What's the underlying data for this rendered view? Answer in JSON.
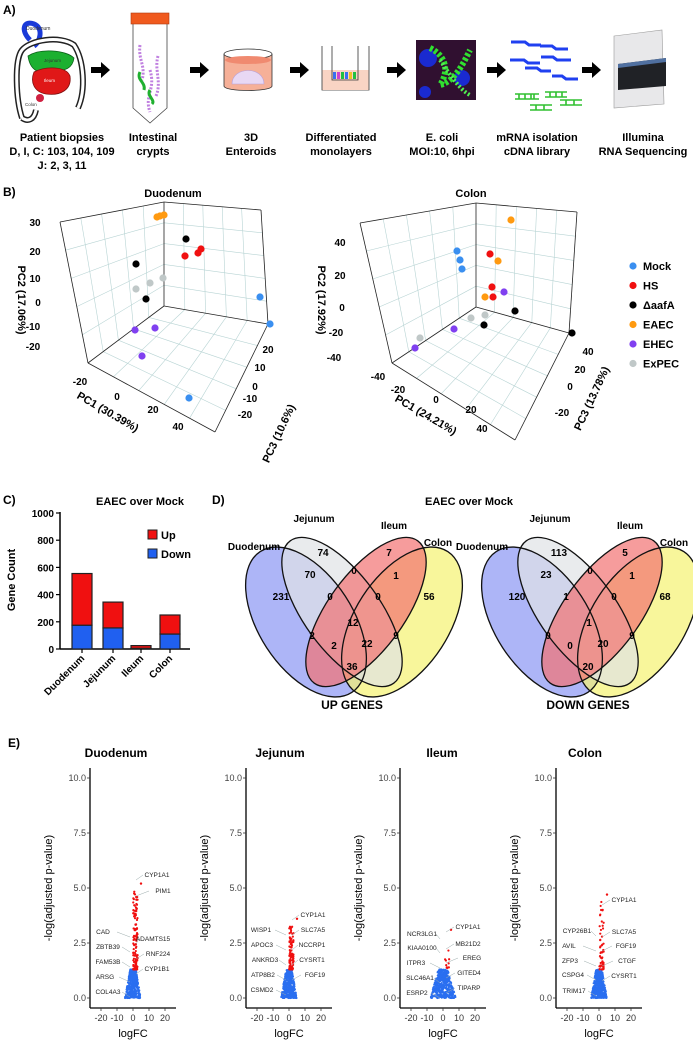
{
  "panel_labels": {
    "a": "A)",
    "b": "B)",
    "c": "C)",
    "d": "D)",
    "e": "E)"
  },
  "workflow": {
    "intestine_labels": [
      "Duodenum",
      "Jejunum",
      "Ileum",
      "Colon"
    ],
    "steps": [
      {
        "lines": [
          "Patient biopsies",
          "D, I, C: 103, 104, 109",
          "J: 2, 3, 11"
        ]
      },
      {
        "lines": [
          "Intestinal",
          "crypts"
        ]
      },
      {
        "lines": [
          "3D",
          "Enteroids"
        ]
      },
      {
        "lines": [
          "Differentiated",
          "monolayers"
        ]
      },
      {
        "lines": [
          "E. coli",
          "MOI:10, 6hpi"
        ]
      },
      {
        "lines": [
          "mRNA isolation",
          "cDNA library"
        ]
      },
      {
        "lines": [
          "Illumina",
          "RNA Sequencing"
        ]
      }
    ]
  },
  "pca": [
    {
      "title": "Duodenum",
      "x_label": "PC1 (30.39%)",
      "y_label": "PC2 (17.06%)",
      "z_label": "PC3 (10.6%)",
      "y_ticks": [
        "30",
        "20",
        "10",
        "0",
        "-10",
        "-20"
      ],
      "x_ticks": [
        "-20",
        "0",
        "20",
        "40"
      ],
      "z_ticks": [
        "20",
        "10",
        "0",
        "-10",
        "-20"
      ]
    },
    {
      "title": "Colon",
      "x_label": "PC1 (24.21%)",
      "y_label": "PC2 (17.92%)",
      "z_label": "PC3 (13.78%)",
      "y_ticks": [
        "40",
        "20",
        "0",
        "-20",
        "-40"
      ],
      "x_ticks": [
        "-40",
        "-20",
        "0",
        "20",
        "40"
      ],
      "z_ticks": [
        "40",
        "20",
        "0",
        "-20"
      ]
    }
  ],
  "legend": [
    {
      "label": "Mock",
      "color": "#3a8ff0"
    },
    {
      "label": "HS",
      "color": "#f01010"
    },
    {
      "label": "ΔaafA",
      "color": "#000000"
    },
    {
      "label": "EAEC",
      "color": "#ff9a10"
    },
    {
      "label": "EHEC",
      "color": "#8040f0"
    },
    {
      "label": "ExPEC",
      "color": "#c0c8c8"
    }
  ],
  "chart_data": [
    {
      "type": "bar",
      "title": "EAEC over Mock",
      "ylabel": "Gene Count",
      "xlabel": "",
      "ylim": [
        0,
        1000
      ],
      "y_ticks": [
        "0",
        "200",
        "400",
        "600",
        "800",
        "1000"
      ],
      "categories": [
        "Duodenum",
        "Jejunum",
        "Ileum",
        "Colon"
      ],
      "stacked": true,
      "series": [
        {
          "name": "Down",
          "color": "#2060f0",
          "values": [
            175,
            155,
            5,
            110
          ]
        },
        {
          "name": "Up",
          "color": "#f01010",
          "values": [
            380,
            190,
            20,
            140
          ]
        }
      ],
      "legend": "top-right"
    },
    {
      "type": "venn",
      "title": "EAEC over Mock",
      "caption": "UP GENES",
      "sets": [
        "Duodenum",
        "Jejunum",
        "Ileum",
        "Colon"
      ],
      "regions": {
        "J": "74",
        "I": "7",
        "DJ": "70",
        "JI": "0",
        "IC": "1",
        "D": "231",
        "DJI": "0",
        "JIC": "0",
        "C": "56",
        "DJIC": "12",
        "DI": "2",
        "JC": "9",
        "DIC": "2",
        "DJC": "22",
        "DC": "36"
      }
    },
    {
      "type": "venn",
      "caption": "DOWN GENES",
      "sets": [
        "Duodenum",
        "Jejunum",
        "Ileum",
        "Colon"
      ],
      "regions": {
        "J": "113",
        "I": "5",
        "DJ": "23",
        "JI": "0",
        "IC": "1",
        "D": "120",
        "DJI": "1",
        "JIC": "0",
        "C": "68",
        "DJIC": "1",
        "DI": "0",
        "JC": "9",
        "DIC": "0",
        "DJC": "20",
        "DC": "20"
      }
    },
    {
      "type": "scatter",
      "title": "Duodenum",
      "xlabel": "logFC",
      "ylabel": "-log(adjusted p-value)",
      "xlim": [
        -27,
        27
      ],
      "ylim": [
        0,
        10
      ],
      "x_ticks": [
        "-20",
        "-10",
        "0",
        "10",
        "20"
      ],
      "y_ticks": [
        "10.0",
        "7.5",
        "5.0",
        "2.5",
        "0.0"
      ],
      "max_y": 5.2,
      "labels": [
        "CYP1A1",
        "PIM1",
        "CAD",
        "ADAMTS15",
        "ZBTB39",
        "RNF224",
        "FAM53B",
        "CYP1B1",
        "ARSG",
        "COL4A3"
      ]
    },
    {
      "type": "scatter",
      "title": "Jejunum",
      "xlabel": "logFC",
      "ylabel": "-log(adjusted p-value)",
      "xlim": [
        -27,
        27
      ],
      "ylim": [
        0,
        10
      ],
      "x_ticks": [
        "-20",
        "-10",
        "0",
        "10",
        "20"
      ],
      "y_ticks": [
        "10.0",
        "7.5",
        "5.0",
        "2.5",
        "0.0"
      ],
      "max_y": 3.6,
      "labels": [
        "CYP1A1",
        "WISP1",
        "SLC7A5",
        "APOC3",
        "NCCRP1",
        "ANKRD3",
        "CYSRT1",
        "ATP8B2",
        "FGF19",
        "CSMD2"
      ]
    },
    {
      "type": "scatter",
      "title": "Ileum",
      "xlabel": "logFC",
      "ylabel": "-log(adjusted p-value)",
      "xlim": [
        -27,
        27
      ],
      "ylim": [
        0,
        10
      ],
      "x_ticks": [
        "-20",
        "-10",
        "0",
        "10",
        "20"
      ],
      "y_ticks": [
        "10.0",
        "7.5",
        "5.0",
        "2.5",
        "0.0"
      ],
      "max_y": 3.1,
      "labels": [
        "CYP1A1",
        "NCR3LG1",
        "MB21D2",
        "KIAA0100",
        "EREG",
        "ITPR3",
        "GITED4",
        "SLC46A1",
        "TIPARP",
        "ESRP2"
      ]
    },
    {
      "type": "scatter",
      "title": "Colon",
      "xlabel": "logFC",
      "ylabel": "-log(adjusted p-value)",
      "xlim": [
        -27,
        27
      ],
      "ylim": [
        0,
        10
      ],
      "x_ticks": [
        "-20",
        "-10",
        "0",
        "10",
        "20"
      ],
      "y_ticks": [
        "10.0",
        "7.5",
        "5.0",
        "2.5",
        "0.0"
      ],
      "max_y": 4.7,
      "labels": [
        "CYP1A1",
        "CYP26B1",
        "SLC7A5",
        "AVIL",
        "FGF19",
        "ZFP3",
        "CTGF",
        "CSPG4",
        "CYSRT1",
        "TRIM17"
      ]
    }
  ],
  "colors": {
    "up": "#f01010",
    "down": "#2a6ff0",
    "venn_duodenum": "#8a96f4",
    "venn_jejunum": "#dfe2e6",
    "venn_ileum": "#f27272",
    "venn_colon": "#f5f270"
  }
}
